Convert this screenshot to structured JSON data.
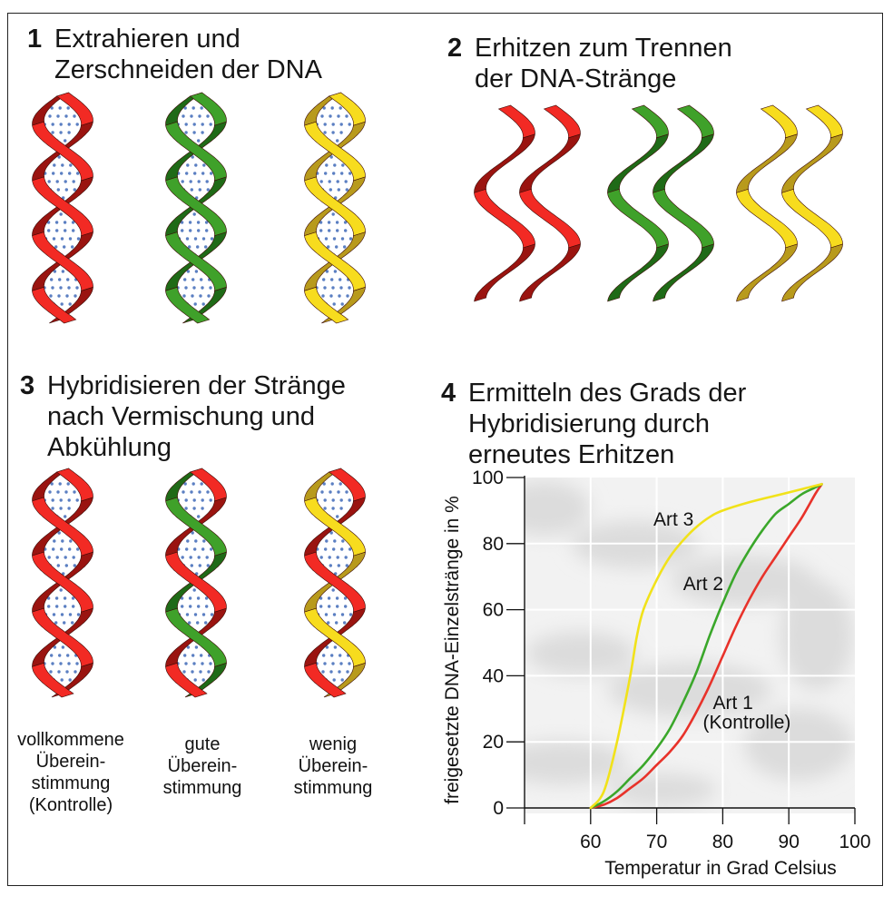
{
  "panels": {
    "p1": {
      "number": "1",
      "lines": [
        "Extrahieren und",
        "Zerschneiden der DNA"
      ]
    },
    "p2": {
      "number": "2",
      "lines": [
        "Erhitzen zum Trennen",
        "der DNA-Stränge"
      ]
    },
    "p3": {
      "number": "3",
      "lines": [
        "Hybridisieren der Stränge",
        "nach Vermischung und",
        "Abkühlung"
      ]
    },
    "p4": {
      "number": "4",
      "lines": [
        "Ermitteln des Grads der",
        "Hybridisierung durch",
        "erneutes Erhitzen"
      ]
    }
  },
  "match_labels": [
    {
      "lines": [
        "vollkommene",
        "Überein-",
        "stimmung",
        "(Kontrolle)"
      ]
    },
    {
      "lines": [
        "gute",
        "Überein-",
        "stimmung"
      ]
    },
    {
      "lines": [
        "wenig",
        "Überein-",
        "stimmung"
      ]
    }
  ],
  "colors": {
    "red_light": "#f22a24",
    "red_dark": "#9a1410",
    "green_light": "#3fa12a",
    "green_dark": "#1f6a17",
    "yellow_light": "#f7dc1e",
    "yellow_dark": "#b89a1c",
    "dots": "#5b7fc2",
    "curve_art1": "#e8322a",
    "curve_art2": "#3aa72a",
    "curve_art3": "#f1e21a"
  },
  "icons": [
    "dna-double-helix-icon",
    "dna-single-strand-icon",
    "dna-hybrid-helix-icon"
  ],
  "chart_data": {
    "type": "line",
    "title": "",
    "xlabel": "Temperatur in Grad Celsius",
    "ylabel": "freigesetzte DNA-Einzelstränge in %",
    "xlim": [
      50,
      100
    ],
    "ylim": [
      0,
      100
    ],
    "xticks": [
      60,
      70,
      80,
      90,
      100
    ],
    "yticks": [
      0,
      20,
      40,
      60,
      80,
      100
    ],
    "grid": true,
    "series": [
      {
        "name": "Art 1",
        "name_extra": "(Kontrolle)",
        "color": "#e8322a",
        "x": [
          60,
          62,
          64,
          66,
          68,
          70,
          72,
          74,
          76,
          78,
          80,
          82,
          84,
          86,
          88,
          90,
          92,
          94,
          95
        ],
        "y": [
          0,
          1,
          3,
          6,
          9,
          13,
          17,
          22,
          29,
          37,
          46,
          55,
          63,
          70,
          76,
          82,
          88,
          95,
          98
        ]
      },
      {
        "name": "Art 2",
        "color": "#3aa72a",
        "x": [
          60,
          62,
          64,
          66,
          68,
          70,
          72,
          74,
          76,
          78,
          80,
          82,
          84,
          86,
          88,
          90,
          92,
          94,
          95
        ],
        "y": [
          0,
          2,
          5,
          9,
          13,
          18,
          24,
          32,
          41,
          52,
          62,
          71,
          78,
          84,
          89,
          92,
          95,
          97,
          98
        ]
      },
      {
        "name": "Art 3",
        "color": "#f1e21a",
        "x": [
          60,
          62,
          64,
          66,
          67,
          68,
          70,
          72,
          74,
          76,
          78,
          80,
          84,
          88,
          92,
          95
        ],
        "y": [
          0,
          5,
          20,
          40,
          52,
          60,
          69,
          76,
          81,
          85,
          88,
          90,
          92.5,
          94.5,
          96.5,
          98
        ]
      }
    ],
    "annotations": [
      {
        "text": "Art 3",
        "x": 69.5,
        "y": 85.5
      },
      {
        "text": "Art 2",
        "x": 74,
        "y": 66
      },
      {
        "text": "Art 1",
        "x": 78.5,
        "y": 30
      },
      {
        "text": "(Kontrolle)",
        "x": 77,
        "y": 24
      }
    ]
  }
}
